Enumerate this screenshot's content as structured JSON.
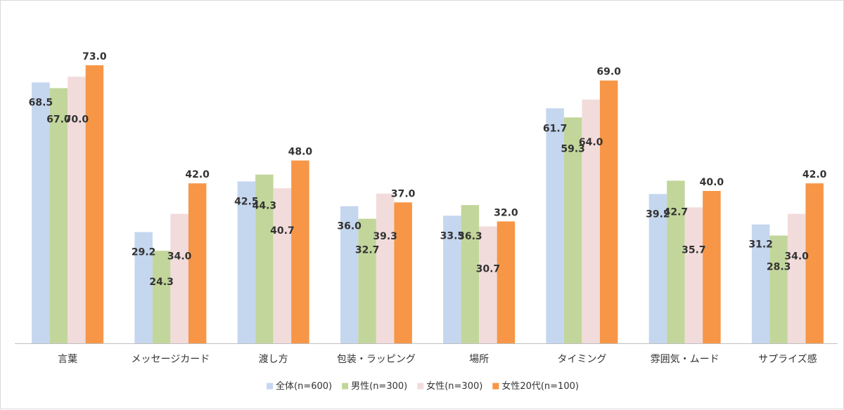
{
  "chart_data": {
    "type": "bar",
    "categories": [
      "言葉",
      "メッセージカード",
      "渡し方",
      "包装・ラッピング",
      "場所",
      "タイミング",
      "雰囲気・ムード",
      "サプライズ感"
    ],
    "series": [
      {
        "name": "全体(n=600)",
        "color": "#c5d6ef",
        "values": [
          68.5,
          29.2,
          42.5,
          36.0,
          33.5,
          61.7,
          39.2,
          31.2
        ]
      },
      {
        "name": "男性(n=300)",
        "color": "#c2d69b",
        "values": [
          67.0,
          24.3,
          44.3,
          32.7,
          36.3,
          59.3,
          42.7,
          28.3
        ]
      },
      {
        "name": "女性(n=300)",
        "color": "#f2dcdb",
        "values": [
          70.0,
          34.0,
          40.7,
          39.3,
          30.7,
          64.0,
          35.7,
          34.0
        ]
      },
      {
        "name": "女性20代(n=100)",
        "color": "#f79646",
        "values": [
          73.0,
          42.0,
          48.0,
          37.0,
          32.0,
          69.0,
          40.0,
          42.0
        ]
      }
    ],
    "data_labels": [
      [
        "68.5",
        "29.2",
        "42.5",
        "36.0",
        "33.5",
        "61.7",
        "39.2",
        "31.2"
      ],
      [
        "67.0",
        "24.3",
        "44.3",
        "32.7",
        "36.3",
        "59.3",
        "42.7",
        "28.3"
      ],
      [
        "70.0",
        "34.0",
        "40.7",
        "39.3",
        "30.7",
        "64.0",
        "35.7",
        "34.0"
      ],
      [
        "73.0",
        "42.0",
        "48.0",
        "37.0",
        "32.0",
        "69.0",
        "40.0",
        "42.0"
      ]
    ],
    "ylim": [
      0,
      80
    ],
    "grid": false,
    "legend_position": "bottom",
    "title": "",
    "xlabel": "",
    "ylabel": ""
  }
}
